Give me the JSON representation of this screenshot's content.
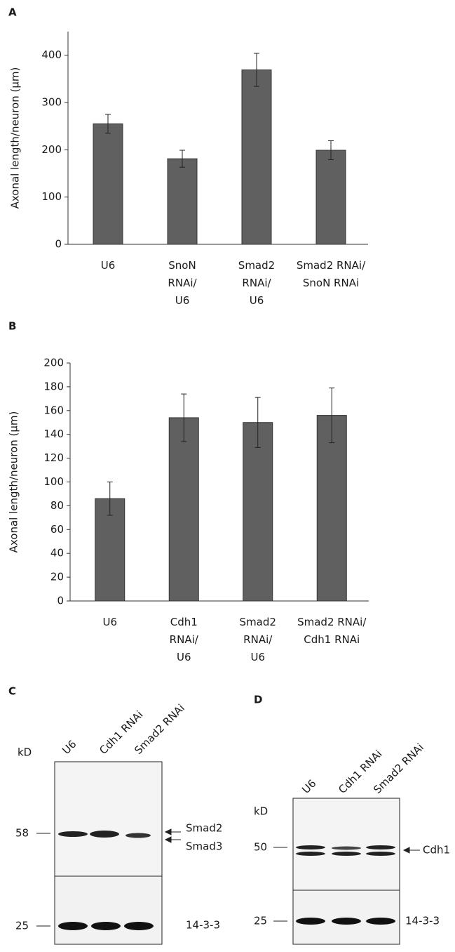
{
  "panel_labels": [
    "A",
    "B",
    "C",
    "D"
  ],
  "chart_data": [
    {
      "type": "bar",
      "y_label": "Axonal length/neuron (μm)",
      "categories": [
        "U6",
        "SnoN\nRNAi/\nU6",
        "Smad2\nRNAi/\nU6",
        "Smad2 RNAi/\nSnoN RNAi"
      ],
      "values": [
        255,
        181,
        369,
        199
      ],
      "errors": [
        20,
        18,
        35,
        20
      ],
      "color": "#606060",
      "ylim": [
        0,
        450
      ],
      "yticks": [
        0,
        100,
        200,
        300,
        400
      ]
    },
    {
      "type": "bar",
      "y_label": "Axonal length/neuron (μm)",
      "categories": [
        "U6",
        "Cdh1\nRNAi/\nU6",
        "Smad2\nRNAi/\nU6",
        "Smad2 RNAi/\nCdh1 RNAi"
      ],
      "values": [
        86,
        154,
        150,
        156
      ],
      "errors": [
        14,
        20,
        21,
        23
      ],
      "color": "#606060",
      "ylim": [
        0,
        200
      ],
      "yticks": [
        0,
        20,
        40,
        60,
        80,
        100,
        120,
        140,
        160,
        180,
        200
      ]
    }
  ],
  "blots": [
    {
      "unit": "kD",
      "lanes": [
        "U6",
        "Cdh1 RNAi",
        "Smad2 RNAi"
      ],
      "markers": [
        58,
        25
      ],
      "bands": [
        "Smad2",
        "Smad3",
        "14-3-3"
      ]
    },
    {
      "unit": "kD",
      "lanes": [
        "U6",
        "Cdh1 RNAi",
        "Smad2 RNAi"
      ],
      "markers": [
        50,
        25
      ],
      "bands": [
        "Cdh1",
        "14-3-3"
      ]
    }
  ]
}
